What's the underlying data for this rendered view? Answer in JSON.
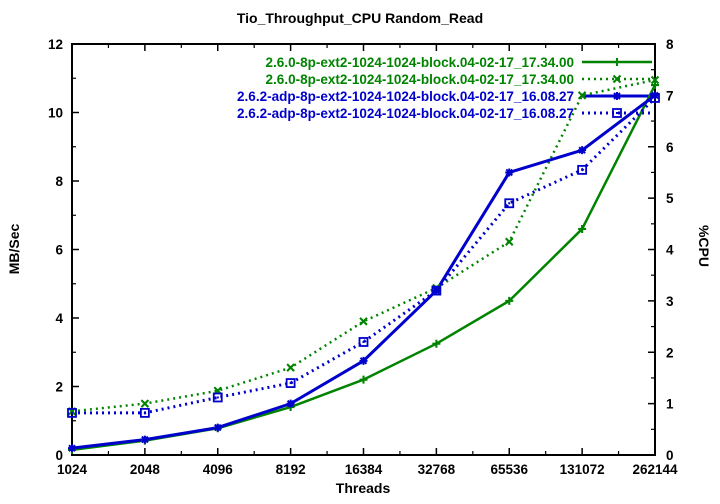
{
  "chart_data": {
    "type": "line",
    "title": "Tio_Throughput_CPU Random_Read",
    "xlabel": "Threads",
    "ylabel_left": "MB/Sec",
    "ylabel_right": "%CPU",
    "x_categories": [
      "1024",
      "2048",
      "4096",
      "8192",
      "16384",
      "32768",
      "65536",
      "131072",
      "262144"
    ],
    "y_left": {
      "min": 0,
      "max": 12,
      "major_step": 2,
      "minor_step": 1
    },
    "y_right": {
      "min": 0,
      "max": 8,
      "major_step": 1,
      "minor_step": 0.5
    },
    "grid": "off",
    "legend_position": "top-right-inside",
    "colors": {
      "kernel_260": "#008400",
      "kernel_262_adp": "#0000cc",
      "axis": "#000000"
    },
    "series": [
      {
        "name": "2.6.0-8p-ext2-1024-1024-block.04-02-17_17.34.00",
        "color": "#008400",
        "axis": "left",
        "line": "solid",
        "marker": "plus",
        "values": [
          0.15,
          0.42,
          0.78,
          1.4,
          2.2,
          3.25,
          4.5,
          6.6,
          10.8
        ]
      },
      {
        "name": "2.6.0-8p-ext2-1024-1024-block.04-02-17_17.34.00",
        "color": "#008400",
        "axis": "right",
        "line": "dotted",
        "marker": "cross",
        "values": [
          0.85,
          1.0,
          1.25,
          1.7,
          2.6,
          3.25,
          4.15,
          7.0,
          7.3
        ]
      },
      {
        "name": "2.6.2-adp-8p-ext2-1024-1024-block.04-02-17_16.08.27",
        "color": "#0000cc",
        "axis": "left",
        "line": "solid",
        "marker": "asterisk",
        "values": [
          0.2,
          0.45,
          0.8,
          1.5,
          2.75,
          4.8,
          8.25,
          8.9,
          10.5
        ]
      },
      {
        "name": "2.6.2-adp-8p-ext2-1024-1024-block.04-02-17_16.08.27",
        "color": "#0000cc",
        "axis": "right",
        "line": "dotted",
        "marker": "open-square",
        "values": [
          0.82,
          0.82,
          1.12,
          1.4,
          2.2,
          3.2,
          4.9,
          5.55,
          6.95
        ]
      }
    ]
  }
}
